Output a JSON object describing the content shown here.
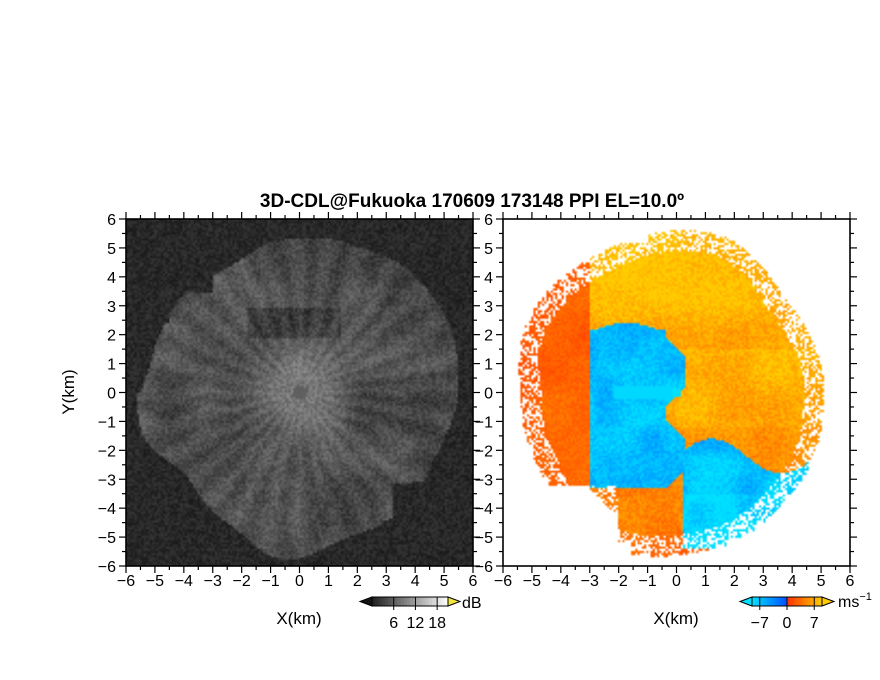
{
  "chart_data": [
    {
      "type": "heatmap",
      "title": "3D-CDL@Fukuoka 170609 173148 PPI EL=10.0º",
      "xlabel": "X(km)",
      "ylabel": "Y(km)",
      "xlim": [
        -6,
        6
      ],
      "ylim": [
        -6,
        6
      ],
      "xticks": [
        "-6",
        "-5",
        "-4",
        "-3",
        "-2",
        "-1",
        "0",
        "1",
        "2",
        "3",
        "4",
        "5",
        "6"
      ],
      "yticks": [
        "6",
        "5",
        "4",
        "3",
        "2",
        "1",
        "0",
        "-1",
        "-2",
        "-3",
        "-4",
        "-5",
        "-6"
      ],
      "colorbar": {
        "unit": "dB",
        "ticks": [
          6,
          12,
          18
        ],
        "range": [
          0,
          21
        ],
        "colors": "grayscale"
      }
    },
    {
      "type": "heatmap",
      "xlabel": "X(km)",
      "xlim": [
        -6,
        6
      ],
      "ylim": [
        -6,
        6
      ],
      "xticks": [
        "-6",
        "-5",
        "-4",
        "-3",
        "-2",
        "-1",
        "0",
        "1",
        "2",
        "3",
        "4",
        "5",
        "6"
      ],
      "yticks": [
        "6",
        "5",
        "4",
        "3",
        "2",
        "1",
        "0",
        "-1",
        "-2",
        "-3",
        "-4",
        "-5",
        "-6"
      ],
      "colorbar": {
        "unit": "ms",
        "unit_exponent": "−1",
        "ticks": [
          -7,
          0,
          7
        ],
        "range": [
          -9,
          9
        ],
        "colors": [
          "#00e0ff",
          "#0050ff",
          "#ff3000",
          "#ffcc00"
        ]
      }
    }
  ]
}
